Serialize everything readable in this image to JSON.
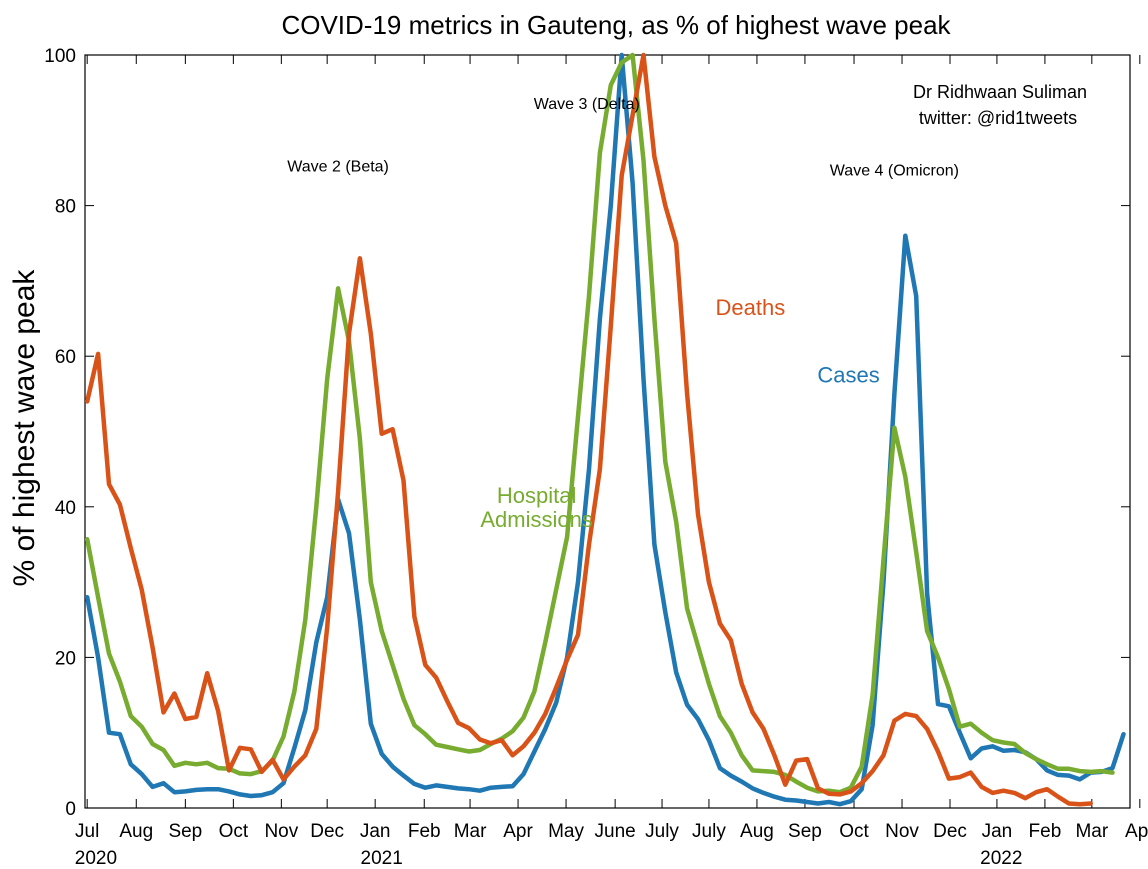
{
  "chart_data": {
    "type": "line",
    "title": "COVID-19 metrics in Gauteng, as % of highest wave peak",
    "ylabel": "% of highest wave peak",
    "xlabel": "",
    "ylim": [
      0,
      100
    ],
    "yticks": [
      "0",
      "20",
      "40",
      "60",
      "80",
      "100"
    ],
    "xticks": [
      {
        "x": 0,
        "label": "Jul"
      },
      {
        "x": 4.5,
        "label": "Aug"
      },
      {
        "x": 9.0,
        "label": "Sep"
      },
      {
        "x": 13.4,
        "label": "Oct"
      },
      {
        "x": 17.8,
        "label": "Nov"
      },
      {
        "x": 22.0,
        "label": "Dec"
      },
      {
        "x": 26.4,
        "label": "Jan"
      },
      {
        "x": 30.9,
        "label": "Feb"
      },
      {
        "x": 35.1,
        "label": "Mar"
      },
      {
        "x": 39.5,
        "label": "Apr"
      },
      {
        "x": 43.9,
        "label": "May"
      },
      {
        "x": 48.4,
        "label": "June"
      },
      {
        "x": 52.7,
        "label": "July"
      },
      {
        "x": 57.0,
        "label": "July"
      },
      {
        "x": 61.4,
        "label": "Aug"
      },
      {
        "x": 65.8,
        "label": "Sep"
      },
      {
        "x": 70.3,
        "label": "Oct"
      },
      {
        "x": 74.7,
        "label": "Nov"
      },
      {
        "x": 79.1,
        "label": "Dec"
      },
      {
        "x": 83.4,
        "label": "Jan"
      },
      {
        "x": 87.8,
        "label": "Feb"
      },
      {
        "x": 92.1,
        "label": "Mar"
      },
      {
        "x": 96.5,
        "label": "Apr"
      }
    ],
    "years": [
      {
        "x": 0.8,
        "label": "2020"
      },
      {
        "x": 27.0,
        "label": "2021"
      },
      {
        "x": 83.8,
        "label": "2022"
      }
    ],
    "series": [
      {
        "name": "Cases",
        "color": "#1f77b4",
        "points": [
          [
            0,
            28
          ],
          [
            1,
            20
          ],
          [
            2,
            10
          ],
          [
            3,
            9.8
          ],
          [
            4,
            5.8
          ],
          [
            5,
            4.5
          ],
          [
            6,
            2.8
          ],
          [
            7,
            3.3
          ],
          [
            8,
            2.1
          ],
          [
            9,
            2.2
          ],
          [
            10,
            2.4
          ],
          [
            11,
            2.5
          ],
          [
            12,
            2.5
          ],
          [
            13,
            2.2
          ],
          [
            14,
            1.8
          ],
          [
            15,
            1.6
          ],
          [
            16,
            1.7
          ],
          [
            17,
            2.1
          ],
          [
            18,
            3.3
          ],
          [
            19,
            8
          ],
          [
            20,
            13
          ],
          [
            21,
            22
          ],
          [
            22,
            28
          ],
          [
            23,
            41
          ],
          [
            24,
            36.5
          ],
          [
            25,
            25
          ],
          [
            26,
            11.2
          ],
          [
            27,
            7.2
          ],
          [
            28,
            5.5
          ],
          [
            29,
            4.3
          ],
          [
            30,
            3.2
          ],
          [
            31,
            2.7
          ],
          [
            32,
            3.0
          ],
          [
            33,
            2.8
          ],
          [
            34,
            2.6
          ],
          [
            35,
            2.5
          ],
          [
            36,
            2.3
          ],
          [
            37,
            2.7
          ],
          [
            38,
            2.8
          ],
          [
            39,
            2.9
          ],
          [
            40,
            4.5
          ],
          [
            41,
            7.5
          ],
          [
            42,
            10.5
          ],
          [
            43,
            14
          ],
          [
            44,
            20
          ],
          [
            45,
            30
          ],
          [
            46,
            45
          ],
          [
            47,
            65
          ],
          [
            48,
            80
          ],
          [
            49,
            100
          ],
          [
            50,
            83
          ],
          [
            51,
            57
          ],
          [
            52,
            35
          ],
          [
            53,
            26
          ],
          [
            54,
            18
          ],
          [
            55,
            13.7
          ],
          [
            56,
            11.8
          ],
          [
            57,
            9
          ],
          [
            58,
            5.3
          ],
          [
            59,
            4.3
          ],
          [
            60,
            3.5
          ],
          [
            61,
            2.6
          ],
          [
            62,
            2.0
          ],
          [
            63,
            1.5
          ],
          [
            64,
            1.1
          ],
          [
            65,
            1.0
          ],
          [
            66,
            0.8
          ],
          [
            67,
            0.6
          ],
          [
            68,
            0.8
          ],
          [
            69,
            0.5
          ],
          [
            70,
            0.9
          ],
          [
            71,
            2.5
          ],
          [
            72,
            11
          ],
          [
            73,
            30
          ],
          [
            74,
            55
          ],
          [
            75,
            76
          ],
          [
            76,
            68
          ],
          [
            77,
            28.5
          ],
          [
            78,
            13.8
          ],
          [
            79,
            13.5
          ],
          [
            80,
            10
          ],
          [
            81,
            6.6
          ],
          [
            82,
            7.9
          ],
          [
            83,
            8.2
          ],
          [
            84,
            7.6
          ],
          [
            85,
            7.7
          ],
          [
            86,
            7.4
          ],
          [
            87,
            6.5
          ],
          [
            88,
            5
          ],
          [
            89,
            4.4
          ],
          [
            90,
            4.3
          ],
          [
            91,
            3.8
          ],
          [
            92,
            4.7
          ],
          [
            93,
            4.8
          ],
          [
            94,
            5.3
          ],
          [
            95,
            9.8
          ]
        ]
      },
      {
        "name": "Hospital Admissions",
        "label_lines": [
          "Hospital",
          "Admissions"
        ],
        "color": "#77ac30",
        "points": [
          [
            0,
            35.7
          ],
          [
            1,
            28
          ],
          [
            2,
            20.5
          ],
          [
            3,
            16.8
          ],
          [
            4,
            12.2
          ],
          [
            5,
            10.8
          ],
          [
            6,
            8.5
          ],
          [
            7,
            7.7
          ],
          [
            8,
            5.6
          ],
          [
            9,
            6.0
          ],
          [
            10,
            5.8
          ],
          [
            11,
            6.0
          ],
          [
            12,
            5.3
          ],
          [
            13,
            5.2
          ],
          [
            14,
            4.6
          ],
          [
            15,
            4.5
          ],
          [
            16,
            4.9
          ],
          [
            17,
            6.3
          ],
          [
            18,
            9.5
          ],
          [
            19,
            15.5
          ],
          [
            20,
            25
          ],
          [
            21,
            40
          ],
          [
            22,
            57
          ],
          [
            23,
            69
          ],
          [
            24,
            62
          ],
          [
            25,
            49
          ],
          [
            26,
            30
          ],
          [
            27,
            23.5
          ],
          [
            28,
            19
          ],
          [
            29,
            14.5
          ],
          [
            30,
            11
          ],
          [
            31,
            9.8
          ],
          [
            32,
            8.4
          ],
          [
            33,
            8.1
          ],
          [
            34,
            7.8
          ],
          [
            35,
            7.5
          ],
          [
            36,
            7.7
          ],
          [
            37,
            8.5
          ],
          [
            38,
            9.2
          ],
          [
            39,
            10.2
          ],
          [
            40,
            12
          ],
          [
            41,
            15.5
          ],
          [
            42,
            22
          ],
          [
            43,
            29
          ],
          [
            44,
            36
          ],
          [
            45,
            52
          ],
          [
            46,
            68
          ],
          [
            47,
            87
          ],
          [
            48,
            96
          ],
          [
            49,
            99
          ],
          [
            50,
            100
          ],
          [
            51,
            86
          ],
          [
            52,
            65
          ],
          [
            53,
            46
          ],
          [
            54,
            38
          ],
          [
            55,
            26.5
          ],
          [
            56,
            21.5
          ],
          [
            57,
            16.5
          ],
          [
            58,
            12.2
          ],
          [
            59,
            10
          ],
          [
            60,
            7
          ],
          [
            61,
            5
          ],
          [
            62,
            4.9
          ],
          [
            63,
            4.8
          ],
          [
            64,
            4.4
          ],
          [
            65,
            3.5
          ],
          [
            66,
            2.7
          ],
          [
            67,
            2.2
          ],
          [
            68,
            2.3
          ],
          [
            69,
            2.1
          ],
          [
            70,
            2.7
          ],
          [
            71,
            5.5
          ],
          [
            72,
            15
          ],
          [
            73,
            33
          ],
          [
            74,
            50.5
          ],
          [
            75,
            44
          ],
          [
            76,
            34
          ],
          [
            77,
            23.5
          ],
          [
            78,
            20
          ],
          [
            79,
            15.8
          ],
          [
            80,
            10.8
          ],
          [
            81,
            11.2
          ],
          [
            82,
            10
          ],
          [
            83,
            9
          ],
          [
            84,
            8.7
          ],
          [
            85,
            8.5
          ],
          [
            86,
            7.3
          ],
          [
            87,
            6.5
          ],
          [
            88,
            5.8
          ],
          [
            89,
            5.2
          ],
          [
            90,
            5.2
          ],
          [
            91,
            4.9
          ],
          [
            92,
            4.8
          ],
          [
            93,
            4.9
          ],
          [
            94,
            4.7
          ]
        ]
      },
      {
        "name": "Deaths",
        "color": "#d95319",
        "points": [
          [
            0,
            54
          ],
          [
            1,
            60.3
          ],
          [
            2,
            43
          ],
          [
            3,
            40.3
          ],
          [
            4,
            34.5
          ],
          [
            5,
            29
          ],
          [
            6,
            21.3
          ],
          [
            7,
            12.7
          ],
          [
            8,
            15.2
          ],
          [
            9,
            11.8
          ],
          [
            10,
            12.1
          ],
          [
            11,
            17.9
          ],
          [
            12,
            12.9
          ],
          [
            13,
            5
          ],
          [
            14,
            8.0
          ],
          [
            15,
            7.8
          ],
          [
            16,
            4.8
          ],
          [
            17,
            6.4
          ],
          [
            18,
            3.8
          ],
          [
            19,
            5.5
          ],
          [
            20,
            7
          ],
          [
            21,
            10.5
          ],
          [
            22,
            24
          ],
          [
            23,
            42
          ],
          [
            24,
            63
          ],
          [
            25,
            73
          ],
          [
            26,
            63
          ],
          [
            27,
            49.7
          ],
          [
            28,
            50.3
          ],
          [
            29,
            43.5
          ],
          [
            30,
            25.4
          ],
          [
            31,
            19
          ],
          [
            32,
            17.3
          ],
          [
            33,
            14.2
          ],
          [
            34,
            11.3
          ],
          [
            35,
            10.6
          ],
          [
            36,
            9.1
          ],
          [
            37,
            8.6
          ],
          [
            38,
            9.0
          ],
          [
            39,
            7.0
          ],
          [
            40,
            8.2
          ],
          [
            41,
            10
          ],
          [
            42,
            12.5
          ],
          [
            43,
            16
          ],
          [
            44,
            19.7
          ],
          [
            45,
            23
          ],
          [
            46,
            35
          ],
          [
            47,
            45
          ],
          [
            48,
            64
          ],
          [
            49,
            84
          ],
          [
            50,
            92
          ],
          [
            51,
            100
          ],
          [
            52,
            86.5
          ],
          [
            53,
            80
          ],
          [
            54,
            75
          ],
          [
            55,
            55
          ],
          [
            56,
            39
          ],
          [
            57,
            30
          ],
          [
            58,
            24.5
          ],
          [
            59,
            22.3
          ],
          [
            60,
            16.5
          ],
          [
            61,
            12.7
          ],
          [
            62,
            10.5
          ],
          [
            63,
            7
          ],
          [
            64,
            3.1
          ],
          [
            65,
            6.3
          ],
          [
            66,
            6.5
          ],
          [
            67,
            2.6
          ],
          [
            68,
            1.9
          ],
          [
            69,
            1.8
          ],
          [
            70,
            2.2
          ],
          [
            71,
            3.3
          ],
          [
            72,
            4.9
          ],
          [
            73,
            7
          ],
          [
            74,
            11.6
          ],
          [
            75,
            12.5
          ],
          [
            76,
            12.2
          ],
          [
            77,
            10.5
          ],
          [
            78,
            7.5
          ],
          [
            79,
            3.9
          ],
          [
            80,
            4.1
          ],
          [
            81,
            4.7
          ],
          [
            82,
            2.8
          ],
          [
            83,
            2.0
          ],
          [
            84,
            2.3
          ],
          [
            85,
            2.0
          ],
          [
            86,
            1.3
          ],
          [
            87,
            2.1
          ],
          [
            88,
            2.5
          ],
          [
            89,
            1.5
          ],
          [
            90,
            0.6
          ],
          [
            91,
            0.5
          ],
          [
            92,
            0.6
          ]
        ]
      }
    ],
    "annotations": [
      {
        "text": "Wave 2 (Beta)",
        "x": 23.0,
        "y": 84.5
      },
      {
        "text": "Wave 3 (Delta)",
        "x": 45.8,
        "y": 92.8
      },
      {
        "text": "Wave 4 (Omicron)",
        "x": 74.0,
        "y": 84.0
      }
    ],
    "series_labels": [
      {
        "series": "Deaths",
        "x": 60.8,
        "y": 65.5
      },
      {
        "series": "Cases",
        "x": 69.8,
        "y": 56.5
      },
      {
        "series": "Hospital Admissions",
        "x": 41.2,
        "y": 40.5
      }
    ],
    "credit": [
      "Dr Ridhwaan Suliman",
      "twitter: @rid1tweets"
    ]
  }
}
